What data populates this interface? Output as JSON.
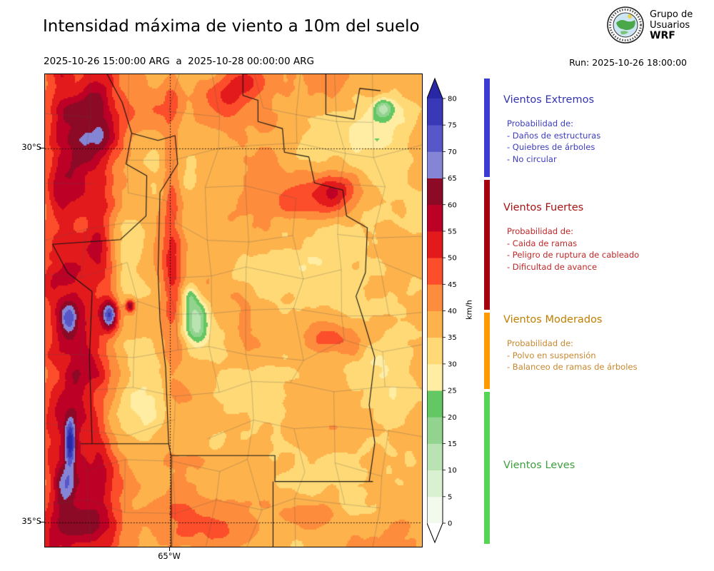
{
  "header": {
    "title": "Intensidad máxima de viento a 10m del suelo",
    "period": "2025-10-26 15:00:00 ARG  a  2025-10-28 00:00:00 ARG",
    "run_label": "Run: 2025-10-26 18:00:00",
    "logo": {
      "line1": "Grupo de",
      "line2": "Usuarios",
      "line3": "WRF"
    }
  },
  "map": {
    "y_ticks": [
      {
        "label": "30°S",
        "v": 0.157
      },
      {
        "label": "35°S",
        "v": 0.9487
      }
    ],
    "x_ticks": [
      {
        "label": "65°W",
        "u": 0.3314
      }
    ]
  },
  "colorbar": {
    "units": "km/h",
    "ticks": [
      0,
      5,
      10,
      15,
      20,
      25,
      30,
      35,
      40,
      45,
      50,
      55,
      60,
      65,
      70,
      75,
      80
    ]
  },
  "categories": [
    {
      "label": "Vientos Extremos",
      "min": 65,
      "max": 84,
      "bar_color": "#3b3bd1"
    },
    {
      "label": "Vientos Fuertes",
      "min": 40,
      "max": 65,
      "bar_color": "#a50010"
    },
    {
      "label": "Vientos Moderados",
      "min": 25,
      "max": 40,
      "bar_color": "#ff9a00"
    },
    {
      "label": "Vientos Leves",
      "min": 0,
      "max": 25,
      "bar_color": "#55d455"
    }
  ],
  "legend": {
    "sections": [
      {
        "title": "Vientos Extremos",
        "title_color": "#3333b2",
        "body_color": "#3c3cc0",
        "intro": "Probabilidad de:",
        "items": [
          "- Daños de estructuras",
          "- Quiebres de árboles",
          "- No circular"
        ]
      },
      {
        "title": "Vientos Fuertes",
        "title_color": "#a51212",
        "body_color": "#c02828",
        "intro": "Probabilidad de:",
        "items": [
          "- Caida de ramas",
          "- Peligro de ruptura de cableado",
          "- Dificultad de avance"
        ]
      },
      {
        "title": "Vientos Moderados",
        "title_color": "#c07d00",
        "body_color": "#c8872e",
        "intro": "Probabilidad de:",
        "items": [
          "- Polvo en suspensión",
          "- Balanceo de ramas de árboles"
        ]
      },
      {
        "title": "Vientos Leves",
        "title_color": "#3f9e3f",
        "body_color": "#3f9e3f",
        "intro": "",
        "items": []
      }
    ]
  },
  "chart_data": {
    "type": "heatmap",
    "title": "Intensidad máxima de viento a 10m del suelo",
    "units": "km/h",
    "value_range": [
      0,
      80
    ],
    "bin_size": 5,
    "palette": [
      "#f2faee",
      "#d9f0d1",
      "#b9e3b2",
      "#92d48f",
      "#63c763",
      "#ffeda3",
      "#fed976",
      "#fdb24c",
      "#fd8d3c",
      "#fc4e2a",
      "#e31a1c",
      "#bd0026",
      "#8c0a25",
      "#8585d6",
      "#5757c9",
      "#3939b8"
    ],
    "under_color": "#ffffff",
    "over_color": "#2828a6",
    "base_value": 36,
    "noise": {
      "amp1": 7.5,
      "fx1": 5.5,
      "fy1": 7.0,
      "amp2": 3.5,
      "fx2": 17,
      "fy2": 22
    },
    "ridges": [
      {
        "u0": 0.065,
        "w": 0.075,
        "amp": 24,
        "fu": 12,
        "fv": 7
      },
      {
        "u0": 0.15,
        "w": 0.05,
        "amp": 15,
        "fu": 14,
        "fv": 8
      },
      {
        "u0": 0.335,
        "w": 0.027,
        "amp": 21,
        "fu": 8,
        "fv": 7,
        "vc": 0.28,
        "vs": 0.3
      }
    ],
    "features": [
      {
        "cx": 0.72,
        "cy": 0.26,
        "rx": 0.105,
        "ry": 0.055,
        "dv": 17
      },
      {
        "cx": 0.77,
        "cy": 0.245,
        "rx": 0.05,
        "ry": 0.03,
        "dv": 8
      },
      {
        "cx": 0.48,
        "cy": 0.055,
        "rx": 0.09,
        "ry": 0.055,
        "dv": 12
      },
      {
        "cx": 0.53,
        "cy": 0.01,
        "rx": 0.06,
        "ry": 0.035,
        "dv": 9
      },
      {
        "cx": 0.12,
        "cy": 0.1,
        "rx": 0.11,
        "ry": 0.09,
        "dv": 10
      },
      {
        "cx": 0.05,
        "cy": 0.24,
        "rx": 0.05,
        "ry": 0.07,
        "dv": 12
      },
      {
        "cx": 0.3,
        "cy": 0.07,
        "rx": 0.07,
        "ry": 0.06,
        "dv": 8
      },
      {
        "cx": 0.78,
        "cy": 0.555,
        "rx": 0.085,
        "ry": 0.035,
        "dv": 11
      },
      {
        "cx": 0.4,
        "cy": 0.955,
        "rx": 0.16,
        "ry": 0.055,
        "dv": 9
      },
      {
        "cx": 0.71,
        "cy": 0.93,
        "rx": 0.08,
        "ry": 0.04,
        "dv": 8
      },
      {
        "cx": 0.1,
        "cy": 0.96,
        "rx": 0.09,
        "ry": 0.05,
        "dv": 11
      },
      {
        "cx": 0.07,
        "cy": 0.8,
        "rx": 0.12,
        "ry": 0.22,
        "dv": 8
      },
      {
        "cx": 0.22,
        "cy": 0.4,
        "rx": 0.05,
        "ry": 0.11,
        "dv": -7
      },
      {
        "cx": 0.27,
        "cy": 0.72,
        "rx": 0.06,
        "ry": 0.1,
        "dv": -6
      },
      {
        "cx": 0.53,
        "cy": 0.68,
        "rx": 0.11,
        "ry": 0.09,
        "dv": -6
      },
      {
        "cx": 0.88,
        "cy": 0.12,
        "rx": 0.09,
        "ry": 0.07,
        "dv": -8
      },
      {
        "cx": 0.92,
        "cy": 0.66,
        "rx": 0.07,
        "ry": 0.09,
        "dv": -5
      },
      {
        "cx": 0.63,
        "cy": 0.4,
        "rx": 0.1,
        "ry": 0.08,
        "dv": -4
      },
      {
        "cx": 0.4,
        "cy": 0.525,
        "rx": 0.035,
        "ry": 0.05,
        "dv": -27
      },
      {
        "cx": 0.385,
        "cy": 0.47,
        "rx": 0.02,
        "ry": 0.025,
        "dv": -14
      },
      {
        "cx": 0.17,
        "cy": 0.51,
        "rx": 0.022,
        "ry": 0.032,
        "dv": 33
      },
      {
        "cx": 0.225,
        "cy": 0.49,
        "rx": 0.012,
        "ry": 0.014,
        "dv": 26
      },
      {
        "cx": 0.065,
        "cy": 0.78,
        "rx": 0.014,
        "ry": 0.05,
        "dv": 28
      },
      {
        "cx": 0.06,
        "cy": 0.52,
        "rx": 0.025,
        "ry": 0.035,
        "dv": 20
      },
      {
        "cx": 0.05,
        "cy": 0.87,
        "rx": 0.03,
        "ry": 0.045,
        "dv": 16
      },
      {
        "cx": 0.9,
        "cy": 0.07,
        "rx": 0.025,
        "ry": 0.02,
        "dv": -20
      }
    ],
    "boundaries": [
      [
        [
          0.165,
          0.0
        ],
        [
          0.205,
          0.06
        ],
        [
          0.23,
          0.125
        ],
        [
          0.215,
          0.19
        ],
        [
          0.27,
          0.215
        ],
        [
          0.268,
          0.3
        ],
        [
          0.2,
          0.35
        ],
        [
          0.02,
          0.36
        ]
      ],
      [
        [
          0.23,
          0.125
        ],
        [
          0.3,
          0.14
        ],
        [
          0.345,
          0.13
        ],
        [
          0.352,
          0.19
        ],
        [
          0.305,
          0.25
        ]
      ],
      [
        [
          0.305,
          0.25
        ],
        [
          0.3,
          0.42
        ],
        [
          0.305,
          0.52
        ],
        [
          0.32,
          0.62
        ],
        [
          0.328,
          0.782
        ],
        [
          0.335,
          0.81
        ],
        [
          0.335,
          1.0
        ]
      ],
      [
        [
          0.525,
          0.0
        ],
        [
          0.525,
          0.045
        ],
        [
          0.565,
          0.055
        ],
        [
          0.565,
          0.1
        ],
        [
          0.63,
          0.115
        ],
        [
          0.635,
          0.165
        ],
        [
          0.7,
          0.175
        ],
        [
          0.715,
          0.23
        ],
        [
          0.79,
          0.245
        ],
        [
          0.8,
          0.3
        ],
        [
          0.855,
          0.325
        ],
        [
          0.85,
          0.42
        ],
        [
          0.825,
          0.47
        ],
        [
          0.845,
          0.52
        ],
        [
          0.875,
          0.6
        ],
        [
          0.86,
          0.7
        ],
        [
          0.875,
          0.78
        ],
        [
          0.86,
          0.862
        ]
      ],
      [
        [
          0.095,
          0.782
        ],
        [
          0.328,
          0.782
        ]
      ],
      [
        [
          0.335,
          0.807
        ],
        [
          0.61,
          0.807
        ],
        [
          0.61,
          0.862
        ],
        [
          0.87,
          0.862
        ]
      ],
      [
        [
          0.605,
          0.862
        ],
        [
          0.605,
          1.0
        ]
      ],
      [
        [
          0.125,
          0.46
        ],
        [
          0.118,
          0.6
        ],
        [
          0.125,
          0.782
        ]
      ],
      [
        [
          0.02,
          0.36
        ],
        [
          0.06,
          0.42
        ],
        [
          0.125,
          0.46
        ]
      ],
      [
        [
          0.745,
          0.0
        ],
        [
          0.745,
          0.085
        ],
        [
          0.82,
          0.095
        ],
        [
          0.835,
          0.03
        ],
        [
          0.89,
          0.035
        ]
      ]
    ],
    "gridlines": {
      "y": [
        0.157,
        0.9487
      ],
      "x": [
        0.3314
      ]
    }
  }
}
